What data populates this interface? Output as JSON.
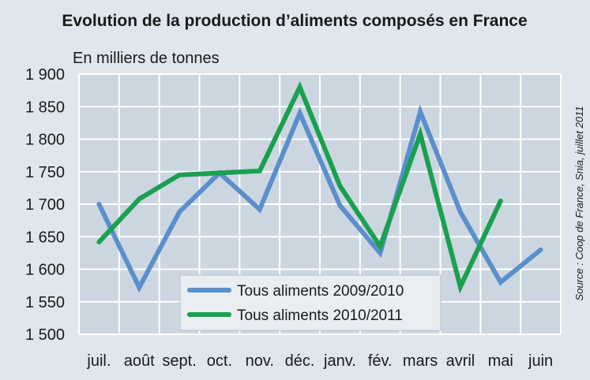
{
  "chart_data": {
    "type": "line",
    "title": "Evolution de la production d’aliments composés en France",
    "ylabel": "En milliers de tonnes",
    "xlabel": "",
    "categories": [
      "juil.",
      "août",
      "sept.",
      "oct.",
      "nov.",
      "déc.",
      "janv.",
      "fév.",
      "mars",
      "avril",
      "mai",
      "juin"
    ],
    "ylim": [
      1500,
      1900
    ],
    "yticks": [
      "1 900",
      "1 850",
      "1 800",
      "1 750",
      "1 700",
      "1 650",
      "1 600",
      "1 550",
      "1 500"
    ],
    "grid": true,
    "legend_position": "bottom-center",
    "series": [
      {
        "name": "Tous aliments 2009/2010",
        "color": "#5b8fcb",
        "values": [
          1700,
          1572,
          1688,
          1748,
          1692,
          1840,
          1698,
          1625,
          1842,
          1688,
          1580,
          1630
        ]
      },
      {
        "name": "Tous aliments 2010/2011",
        "color": "#1aa04f",
        "values": [
          1642,
          1708,
          1745,
          1748,
          1751,
          1880,
          1728,
          1635,
          1808,
          1573,
          1705,
          null
        ]
      }
    ],
    "source": "Source : Coop de France, Snia, juillet 2011"
  },
  "colors": {
    "background": "#dfe6ed",
    "plot_background": "#cbd6e0",
    "grid": "#ffffff"
  }
}
